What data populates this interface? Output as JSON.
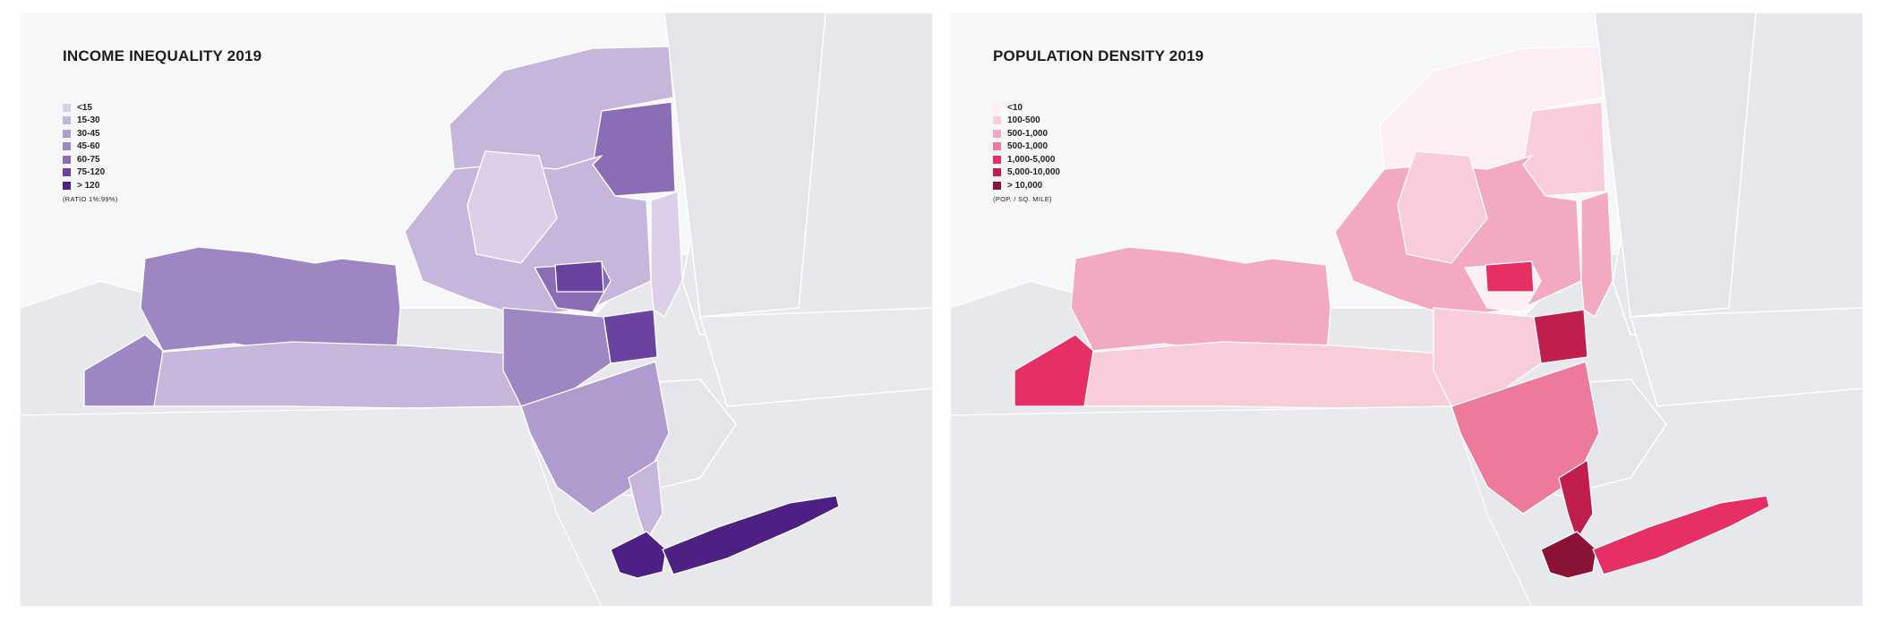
{
  "maps": [
    {
      "title": "INCOME INEQUALITY 2019",
      "legend": [
        {
          "label": "<15",
          "color": "#dcd0e8"
        },
        {
          "label": "15-30",
          "color": "#c7b6dc"
        },
        {
          "label": "30-45",
          "color": "#b09bcf"
        },
        {
          "label": "45-60",
          "color": "#9d86c2"
        },
        {
          "label": "60-75",
          "color": "#8a6db5"
        },
        {
          "label": "75-120",
          "color": "#6a43a0"
        },
        {
          "label": "> 120",
          "color": "#4d2183"
        }
      ],
      "note": "(RATIO 1%:99%)",
      "region_colors": {
        "north_country": "#c7b6dc",
        "adirondack_east": "#8a6db5",
        "central": "#c7b6dc",
        "finger_lakes": "#dcd0e8",
        "west": "#9d86c2",
        "southern_tier": "#c7b6dc",
        "southwest": "#9d86c2",
        "mohawk_a": "#8a6db5",
        "mohawk_b": "#6a43a0",
        "capital": "#6a43a0",
        "hudson_east": "#dcd0e8",
        "catskills": "#9d86c2",
        "mid_hudson": "#b09bcf",
        "lower_hudson": "#c7b6dc",
        "metro": "#4d2183",
        "long_island": "#4d2183"
      }
    },
    {
      "title": "POPULATION DENSITY 2019",
      "legend": [
        {
          "label": "<10",
          "color": "#fdeef3"
        },
        {
          "label": "100-500",
          "color": "#f8ccd9"
        },
        {
          "label": "500-1,000",
          "color": "#f3a9c0"
        },
        {
          "label": "500-1,000",
          "color": "#ee7a9b"
        },
        {
          "label": "1,000-5,000",
          "color": "#e62f64"
        },
        {
          "label": "5,000-10,000",
          "color": "#c01e4c"
        },
        {
          "label": "> 10,000",
          "color": "#8c1238"
        }
      ],
      "note": "(POP. / SQ. MILE)",
      "region_colors": {
        "north_country": "#fdeef3",
        "adirondack_east": "#f8ccd9",
        "central": "#f3a9c0",
        "finger_lakes": "#f8ccd9",
        "west": "#f3a9c0",
        "southern_tier": "#f8ccd9",
        "southwest": "#e62f64",
        "mohawk_a": "#fdeef3",
        "mohawk_b": "#e62f64",
        "capital": "#c01e4c",
        "hudson_east": "#f3a9c0",
        "catskills": "#f8ccd9",
        "mid_hudson": "#ee7a9b",
        "lower_hudson": "#c01e4c",
        "metro": "#8c1238",
        "long_island": "#e62f64"
      }
    }
  ]
}
